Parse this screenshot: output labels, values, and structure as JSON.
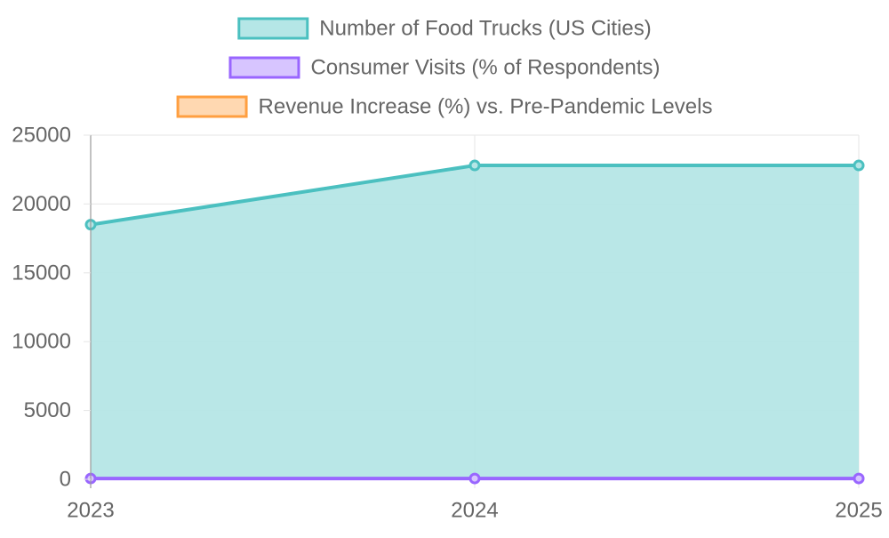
{
  "chart_data": {
    "type": "area",
    "categories": [
      "2023",
      "2024",
      "2025"
    ],
    "series": [
      {
        "name": "Number of Food Trucks (US Cities)",
        "values": [
          18500,
          22800,
          22800
        ],
        "border_color": "#4bc0c0",
        "fill_color": "#b5e6e6",
        "filled": true
      },
      {
        "name": "Consumer Visits (% of Respondents)",
        "values": [
          60,
          60,
          60
        ],
        "border_color": "#9966ff",
        "fill_color": "#d7c5ff",
        "filled": false
      },
      {
        "name": "Revenue Increase (%) vs. Pre-Pandemic Levels",
        "values": [
          null,
          null,
          null
        ],
        "border_color": "#ff9f40",
        "fill_color": "#ffd8b1",
        "filled": false
      }
    ],
    "ylim": [
      0,
      25000
    ],
    "yticks": [
      0,
      5000,
      10000,
      15000,
      20000,
      25000
    ],
    "grid": true,
    "legend_position": "top"
  }
}
